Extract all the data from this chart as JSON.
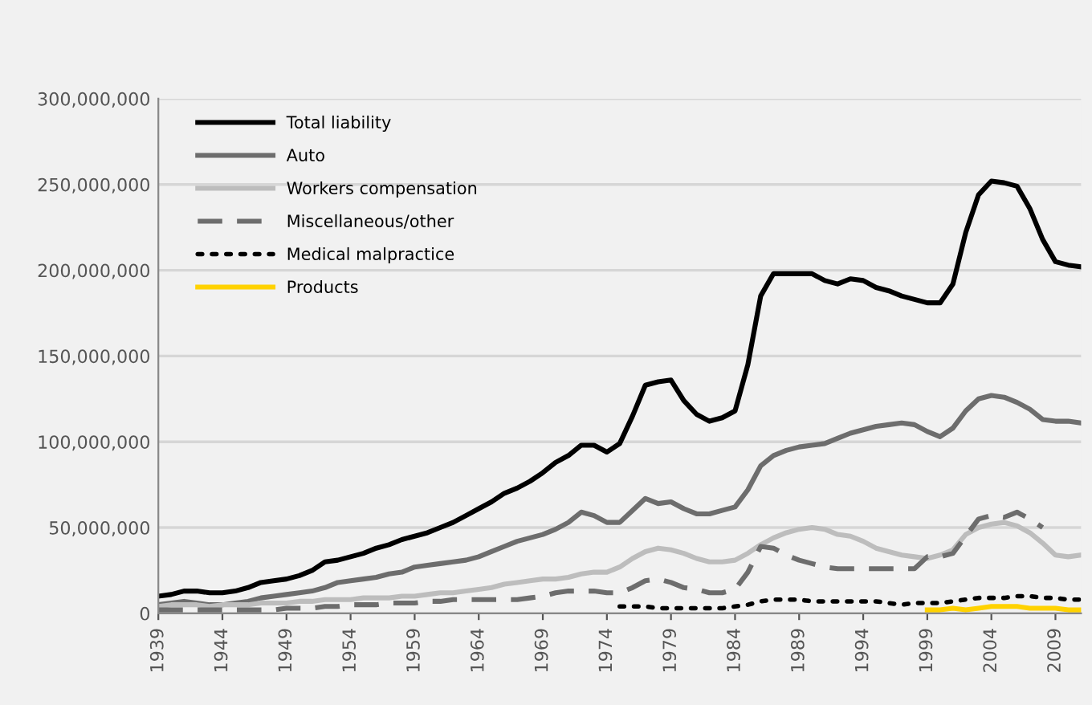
{
  "chart_data": {
    "type": "line",
    "legend": "top left",
    "grid": "y",
    "x": [
      1939,
      1940,
      1941,
      1942,
      1943,
      1944,
      1945,
      1946,
      1947,
      1948,
      1949,
      1950,
      1951,
      1952,
      1953,
      1954,
      1955,
      1956,
      1957,
      1958,
      1959,
      1960,
      1961,
      1962,
      1963,
      1964,
      1965,
      1966,
      1967,
      1968,
      1969,
      1970,
      1971,
      1972,
      1973,
      1974,
      1975,
      1976,
      1977,
      1978,
      1979,
      1980,
      1981,
      1982,
      1983,
      1984,
      1985,
      1986,
      1987,
      1988,
      1989,
      1990,
      1991,
      1992,
      1993,
      1994,
      1995,
      1996,
      1997,
      1998,
      1999,
      2000,
      2001,
      2002,
      2003,
      2004,
      2005,
      2006,
      2007,
      2008,
      2009,
      2010,
      2011
    ],
    "xlim": [
      1939,
      2011
    ],
    "xticks": [
      1939,
      1944,
      1949,
      1954,
      1959,
      1964,
      1969,
      1974,
      1979,
      1984,
      1989,
      1994,
      1999,
      2004,
      2009
    ],
    "ylim": [
      0,
      300000000
    ],
    "yticks": [
      0,
      {
        "value": 50000000,
        "label": "50,000,000"
      },
      {
        "value": 100000000,
        "label": "100,000,000"
      },
      {
        "value": 150000000,
        "label": "150,000,000"
      },
      {
        "value": 200000000,
        "label": "200,000,000"
      },
      {
        "value": 250000000,
        "label": "250,000,000"
      },
      {
        "value": 300000000,
        "label": "300,000,000"
      }
    ],
    "series": [
      {
        "name": "Total liability",
        "color": "#000000",
        "line_style": "solid",
        "values": [
          10000000,
          11000000,
          13000000,
          13000000,
          12000000,
          12000000,
          13000000,
          15000000,
          18000000,
          19000000,
          20000000,
          22000000,
          25000000,
          30000000,
          31000000,
          33000000,
          35000000,
          38000000,
          40000000,
          43000000,
          45000000,
          47000000,
          50000000,
          53000000,
          57000000,
          61000000,
          65000000,
          70000000,
          73000000,
          77000000,
          82000000,
          88000000,
          92000000,
          98000000,
          98000000,
          94000000,
          99000000,
          115000000,
          133000000,
          135000000,
          136000000,
          124000000,
          116000000,
          112000000,
          114000000,
          118000000,
          145000000,
          185000000,
          198000000,
          198000000,
          198000000,
          198000000,
          194000000,
          192000000,
          195000000,
          194000000,
          190000000,
          188000000,
          185000000,
          183000000,
          181000000,
          181000000,
          192000000,
          222000000,
          244000000,
          252000000,
          251000000,
          249000000,
          236000000,
          218000000,
          205000000,
          203000000,
          202000000
        ]
      },
      {
        "name": "Auto",
        "color": "#6d6d6d",
        "line_style": "solid",
        "values": [
          5000000,
          6000000,
          7000000,
          6000000,
          5000000,
          5000000,
          6000000,
          7000000,
          9000000,
          10000000,
          11000000,
          12000000,
          13000000,
          15000000,
          18000000,
          19000000,
          20000000,
          21000000,
          23000000,
          24000000,
          27000000,
          28000000,
          29000000,
          30000000,
          31000000,
          33000000,
          36000000,
          39000000,
          42000000,
          44000000,
          46000000,
          49000000,
          53000000,
          59000000,
          57000000,
          53000000,
          53000000,
          60000000,
          67000000,
          64000000,
          65000000,
          61000000,
          58000000,
          58000000,
          60000000,
          62000000,
          72000000,
          86000000,
          92000000,
          95000000,
          97000000,
          98000000,
          99000000,
          102000000,
          105000000,
          107000000,
          109000000,
          110000000,
          111000000,
          110000000,
          106000000,
          103000000,
          108000000,
          118000000,
          125000000,
          127000000,
          126000000,
          123000000,
          119000000,
          113000000,
          112000000,
          112000000,
          111000000
        ]
      },
      {
        "name": "Workers compensation",
        "color": "#bdbdbd",
        "line_style": "solid",
        "values": [
          4000000,
          5000000,
          5000000,
          5000000,
          4000000,
          5000000,
          5000000,
          5000000,
          6000000,
          6000000,
          6000000,
          7000000,
          7000000,
          8000000,
          8000000,
          8000000,
          9000000,
          9000000,
          9000000,
          10000000,
          10000000,
          11000000,
          12000000,
          12000000,
          13000000,
          14000000,
          15000000,
          17000000,
          18000000,
          19000000,
          20000000,
          20000000,
          21000000,
          23000000,
          24000000,
          24000000,
          27000000,
          32000000,
          36000000,
          38000000,
          37000000,
          35000000,
          32000000,
          30000000,
          30000000,
          31000000,
          35000000,
          40000000,
          44000000,
          47000000,
          49000000,
          50000000,
          49000000,
          46000000,
          45000000,
          42000000,
          38000000,
          36000000,
          34000000,
          33000000,
          32000000,
          34000000,
          37000000,
          46000000,
          50000000,
          52000000,
          53000000,
          51000000,
          47000000,
          41000000,
          34000000,
          33000000,
          34000000
        ]
      },
      {
        "name": "Miscellaneous/other",
        "color": "#6d6d6d",
        "line_style": "dashed",
        "values": [
          2000000,
          2000000,
          2000000,
          2000000,
          2000000,
          2000000,
          2000000,
          2000000,
          2000000,
          2000000,
          3000000,
          3000000,
          3000000,
          4000000,
          4000000,
          5000000,
          5000000,
          5000000,
          6000000,
          6000000,
          6000000,
          7000000,
          7000000,
          8000000,
          8000000,
          8000000,
          8000000,
          8000000,
          8000000,
          9000000,
          10000000,
          12000000,
          13000000,
          13000000,
          13000000,
          12000000,
          12000000,
          15000000,
          19000000,
          20000000,
          18000000,
          15000000,
          14000000,
          12000000,
          12000000,
          14000000,
          24000000,
          39000000,
          38000000,
          34000000,
          31000000,
          29000000,
          27000000,
          26000000,
          26000000,
          26000000,
          26000000,
          26000000,
          26000000,
          26000000,
          33000000,
          33000000,
          35000000,
          45000000,
          55000000,
          57000000,
          56000000,
          59000000,
          55000000,
          50000000,
          null,
          null,
          null
        ]
      },
      {
        "name": "Medical malpractice",
        "color": "#000000",
        "line_style": "dotted",
        "values": [
          null,
          null,
          null,
          null,
          null,
          null,
          null,
          null,
          null,
          null,
          null,
          null,
          null,
          null,
          null,
          null,
          null,
          null,
          null,
          null,
          null,
          null,
          null,
          null,
          null,
          null,
          null,
          null,
          null,
          null,
          null,
          null,
          null,
          null,
          null,
          null,
          4000000,
          4000000,
          4000000,
          3000000,
          3000000,
          3000000,
          3000000,
          3000000,
          3000000,
          4000000,
          5000000,
          7000000,
          8000000,
          8000000,
          8000000,
          7000000,
          7000000,
          7000000,
          7000000,
          7000000,
          7000000,
          6000000,
          5000000,
          6000000,
          6000000,
          6000000,
          7000000,
          8000000,
          9000000,
          9000000,
          9000000,
          10000000,
          10000000,
          9000000,
          9000000,
          8000000,
          8000000
        ]
      },
      {
        "name": "Products",
        "color": "#ffd200",
        "line_style": "solid",
        "values": [
          null,
          null,
          null,
          null,
          null,
          null,
          null,
          null,
          null,
          null,
          null,
          null,
          null,
          null,
          null,
          null,
          null,
          null,
          null,
          null,
          null,
          null,
          null,
          null,
          null,
          null,
          null,
          null,
          null,
          null,
          null,
          null,
          null,
          null,
          null,
          null,
          null,
          null,
          null,
          null,
          null,
          null,
          null,
          null,
          null,
          null,
          null,
          null,
          null,
          null,
          null,
          null,
          null,
          null,
          null,
          null,
          null,
          null,
          null,
          null,
          2000000,
          2000000,
          3000000,
          2000000,
          3000000,
          4000000,
          4000000,
          4000000,
          3000000,
          3000000,
          3000000,
          2000000,
          2000000
        ]
      }
    ]
  }
}
